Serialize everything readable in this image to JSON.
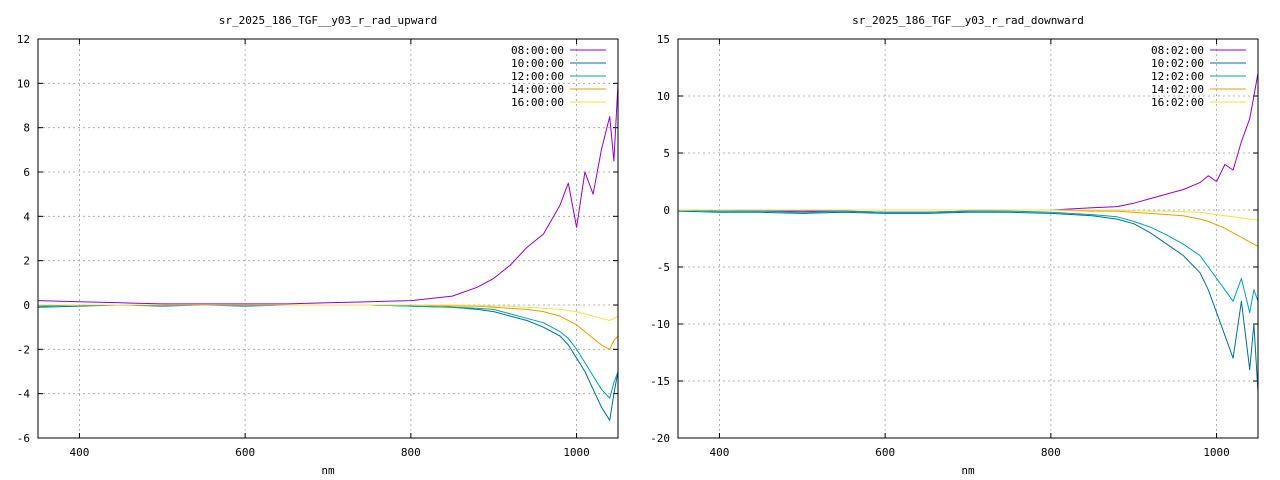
{
  "chart_data": [
    {
      "type": "line",
      "title": "sr_2025_186_TGF__y03_r_rad_upward",
      "xlabel": "nm",
      "ylabel": "",
      "xlim": [
        350,
        1050
      ],
      "ylim": [
        -6,
        12
      ],
      "xticks": [
        400,
        600,
        800,
        1000
      ],
      "yticks": [
        -6,
        -4,
        -2,
        0,
        2,
        4,
        6,
        8,
        10,
        12
      ],
      "grid": true,
      "legend_position": "top-right",
      "series": [
        {
          "name": "08:00:00",
          "color": "#9400d3",
          "x": [
            350,
            400,
            450,
            500,
            550,
            600,
            650,
            700,
            750,
            800,
            850,
            880,
            900,
            920,
            940,
            960,
            980,
            990,
            1000,
            1010,
            1020,
            1030,
            1040,
            1045,
            1050
          ],
          "y": [
            0.2,
            0.15,
            0.1,
            0.05,
            0.05,
            0.05,
            0.05,
            0.1,
            0.15,
            0.2,
            0.4,
            0.8,
            1.2,
            1.8,
            2.6,
            3.2,
            4.5,
            5.5,
            3.5,
            6.0,
            5.0,
            7.0,
            8.5,
            6.5,
            10.0
          ]
        },
        {
          "name": "10:00:00",
          "color": "#007090",
          "x": [
            350,
            400,
            450,
            500,
            550,
            600,
            650,
            700,
            750,
            800,
            850,
            880,
            900,
            920,
            940,
            960,
            980,
            990,
            1000,
            1010,
            1020,
            1030,
            1040,
            1045,
            1050
          ],
          "y": [
            -0.1,
            -0.05,
            0.0,
            -0.05,
            0.0,
            -0.05,
            0.0,
            0.0,
            0.0,
            -0.05,
            -0.1,
            -0.2,
            -0.3,
            -0.5,
            -0.7,
            -1.0,
            -1.4,
            -1.8,
            -2.4,
            -3.0,
            -3.8,
            -4.6,
            -5.2,
            -4.0,
            -3.0
          ]
        },
        {
          "name": "12:00:00",
          "color": "#00a0c0",
          "x": [
            350,
            400,
            450,
            500,
            550,
            600,
            650,
            700,
            750,
            800,
            850,
            880,
            900,
            920,
            940,
            960,
            980,
            990,
            1000,
            1010,
            1020,
            1030,
            1040,
            1045,
            1050
          ],
          "y": [
            -0.05,
            0.0,
            0.0,
            0.0,
            0.0,
            0.0,
            0.0,
            0.0,
            0.0,
            -0.05,
            -0.1,
            -0.15,
            -0.2,
            -0.4,
            -0.6,
            -0.8,
            -1.2,
            -1.5,
            -2.0,
            -2.6,
            -3.2,
            -3.8,
            -4.2,
            -3.5,
            -3.0
          ]
        },
        {
          "name": "14:00:00",
          "color": "#e6a000",
          "x": [
            350,
            400,
            450,
            500,
            550,
            600,
            650,
            700,
            750,
            800,
            850,
            880,
            900,
            920,
            940,
            960,
            980,
            990,
            1000,
            1010,
            1020,
            1030,
            1040,
            1045,
            1050
          ],
          "y": [
            0.0,
            0.0,
            0.0,
            0.0,
            0.0,
            0.0,
            0.0,
            0.0,
            0.0,
            0.0,
            -0.05,
            -0.05,
            -0.1,
            -0.15,
            -0.2,
            -0.3,
            -0.5,
            -0.7,
            -0.9,
            -1.2,
            -1.5,
            -1.8,
            -2.0,
            -1.6,
            -1.4
          ]
        },
        {
          "name": "16:00:00",
          "color": "#f0e442",
          "x": [
            350,
            400,
            450,
            500,
            550,
            600,
            650,
            700,
            750,
            800,
            850,
            880,
            900,
            920,
            940,
            960,
            980,
            990,
            1000,
            1010,
            1020,
            1030,
            1040,
            1045,
            1050
          ],
          "y": [
            0.0,
            0.0,
            0.0,
            0.0,
            0.0,
            0.0,
            0.0,
            0.0,
            0.0,
            0.0,
            0.0,
            -0.02,
            -0.05,
            -0.05,
            -0.1,
            -0.15,
            -0.2,
            -0.25,
            -0.3,
            -0.4,
            -0.5,
            -0.6,
            -0.7,
            -0.6,
            -0.5
          ]
        }
      ]
    },
    {
      "type": "line",
      "title": "sr_2025_186_TGF__y03_r_rad_downward",
      "xlabel": "nm",
      "ylabel": "",
      "xlim": [
        350,
        1050
      ],
      "ylim": [
        -20,
        15
      ],
      "xticks": [
        400,
        600,
        800,
        1000
      ],
      "yticks": [
        -20,
        -15,
        -10,
        -5,
        0,
        5,
        10,
        15
      ],
      "grid": true,
      "legend_position": "top-right",
      "series": [
        {
          "name": "08:02:00",
          "color": "#9400d3",
          "x": [
            350,
            400,
            450,
            500,
            550,
            600,
            650,
            700,
            750,
            800,
            850,
            880,
            900,
            920,
            940,
            960,
            980,
            990,
            1000,
            1010,
            1020,
            1030,
            1040,
            1045,
            1050
          ],
          "y": [
            0.0,
            0.0,
            -0.1,
            -0.1,
            -0.1,
            -0.2,
            -0.2,
            -0.1,
            0.0,
            0.0,
            0.2,
            0.3,
            0.6,
            1.0,
            1.4,
            1.8,
            2.4,
            3.0,
            2.5,
            4.0,
            3.5,
            6.0,
            8.0,
            10.0,
            12.0
          ]
        },
        {
          "name": "10:02:00",
          "color": "#007090",
          "x": [
            350,
            400,
            450,
            500,
            550,
            600,
            650,
            700,
            750,
            800,
            850,
            880,
            900,
            920,
            940,
            960,
            980,
            990,
            1000,
            1010,
            1020,
            1030,
            1040,
            1045,
            1050
          ],
          "y": [
            -0.1,
            -0.2,
            -0.2,
            -0.3,
            -0.2,
            -0.3,
            -0.3,
            -0.2,
            -0.2,
            -0.3,
            -0.5,
            -0.8,
            -1.2,
            -2.0,
            -3.0,
            -4.0,
            -5.5,
            -7.0,
            -9.0,
            -11.0,
            -13.0,
            -8.0,
            -14.0,
            -10.0,
            -16.0
          ]
        },
        {
          "name": "12:02:00",
          "color": "#00a0c0",
          "x": [
            350,
            400,
            450,
            500,
            550,
            600,
            650,
            700,
            750,
            800,
            850,
            880,
            900,
            920,
            940,
            960,
            980,
            990,
            1000,
            1010,
            1020,
            1030,
            1040,
            1045,
            1050
          ],
          "y": [
            0.0,
            -0.1,
            -0.1,
            -0.2,
            -0.1,
            -0.2,
            -0.2,
            -0.1,
            -0.1,
            -0.2,
            -0.4,
            -0.6,
            -1.0,
            -1.5,
            -2.2,
            -3.0,
            -4.0,
            -5.0,
            -6.0,
            -7.0,
            -8.0,
            -6.0,
            -9.0,
            -7.0,
            -8.0
          ]
        },
        {
          "name": "14:02:00",
          "color": "#e6a000",
          "x": [
            350,
            400,
            450,
            500,
            550,
            600,
            650,
            700,
            750,
            800,
            850,
            880,
            900,
            920,
            940,
            960,
            980,
            990,
            1000,
            1010,
            1020,
            1030,
            1040,
            1045,
            1050
          ],
          "y": [
            0.0,
            0.0,
            0.0,
            0.0,
            0.0,
            0.0,
            0.0,
            0.0,
            0.0,
            0.0,
            -0.1,
            -0.1,
            -0.2,
            -0.3,
            -0.4,
            -0.5,
            -0.8,
            -1.0,
            -1.3,
            -1.6,
            -2.0,
            -2.4,
            -2.8,
            -3.0,
            -3.2
          ]
        },
        {
          "name": "16:02:00",
          "color": "#f0e442",
          "x": [
            350,
            400,
            450,
            500,
            550,
            600,
            650,
            700,
            750,
            800,
            850,
            880,
            900,
            920,
            940,
            960,
            980,
            990,
            1000,
            1010,
            1020,
            1030,
            1040,
            1045,
            1050
          ],
          "y": [
            0.0,
            0.0,
            0.0,
            0.0,
            0.0,
            0.0,
            0.0,
            0.0,
            0.0,
            0.0,
            0.0,
            0.0,
            -0.05,
            -0.1,
            -0.1,
            -0.15,
            -0.2,
            -0.3,
            -0.4,
            -0.5,
            -0.6,
            -0.7,
            -0.8,
            -0.8,
            -0.9
          ]
        }
      ]
    }
  ]
}
